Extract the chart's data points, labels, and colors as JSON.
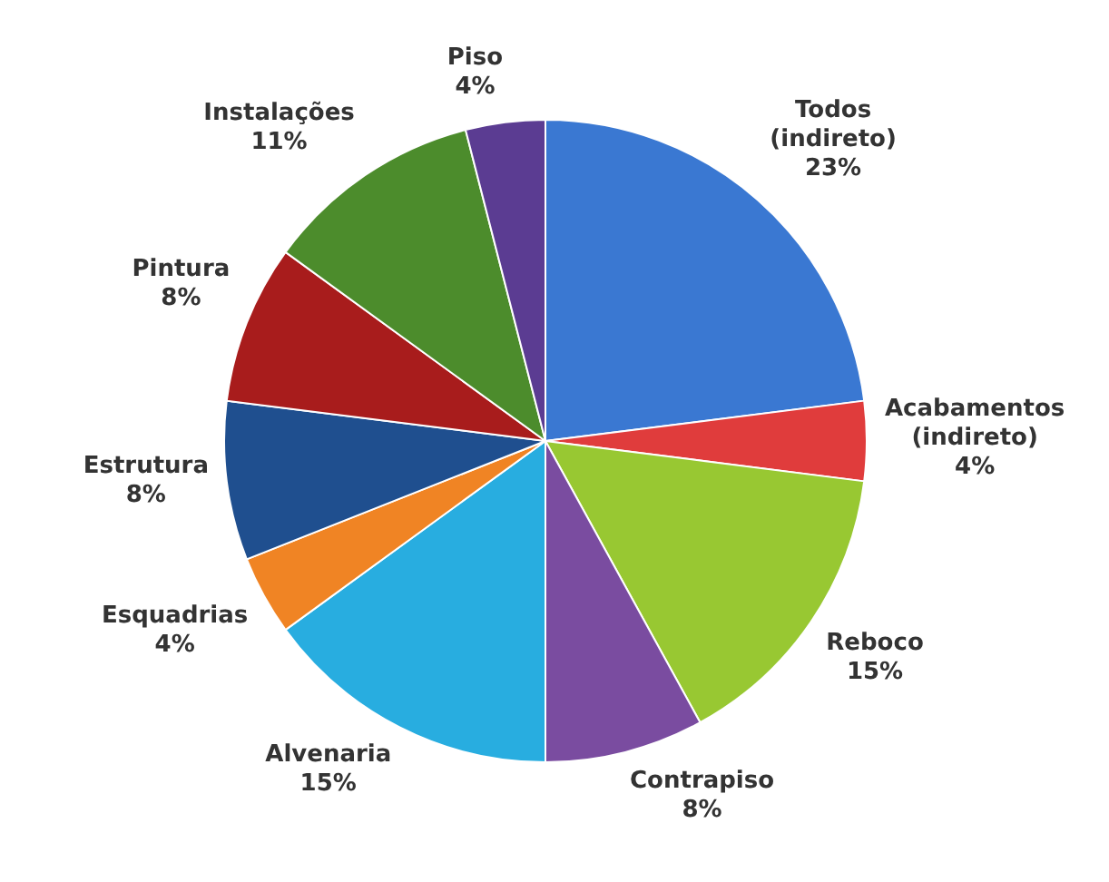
{
  "chart_data": {
    "type": "pie",
    "categories": [
      "Todos (indireto)",
      "Acabamentos (indireto)",
      "Reboco",
      "Contrapiso",
      "Alvenaria",
      "Esquadrias",
      "Estrutura",
      "Pintura",
      "Instalações",
      "Piso"
    ],
    "values": [
      23,
      4,
      15,
      8,
      15,
      4,
      8,
      8,
      11,
      4
    ],
    "value_labels": [
      "23%",
      "4%",
      "15%",
      "8%",
      "15%",
      "4%",
      "8%",
      "8%",
      "11%",
      "4%"
    ],
    "colors": [
      "#3a78d2",
      "#e03c3c",
      "#98c832",
      "#7a4ca0",
      "#28ade0",
      "#f08424",
      "#1f4f8f",
      "#a81c1c",
      "#4c8c2c",
      "#5b3c92"
    ],
    "legend": false
  }
}
